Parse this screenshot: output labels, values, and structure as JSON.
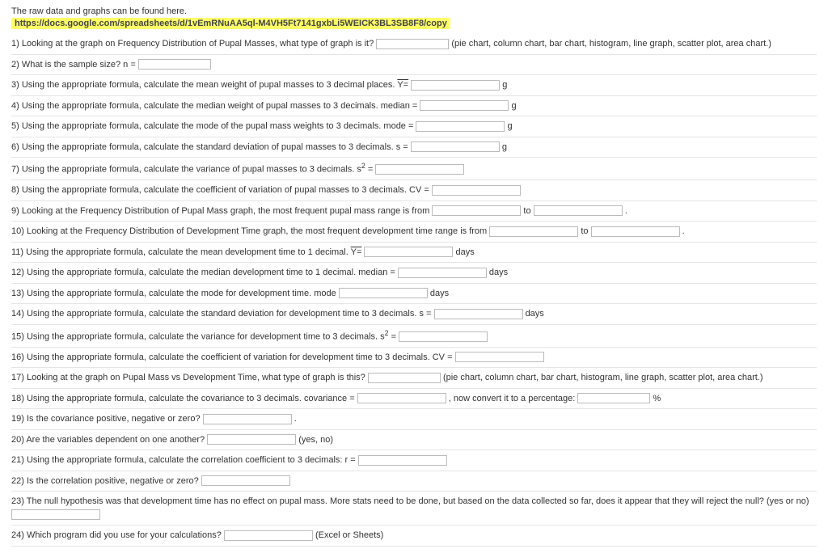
{
  "intro_line": "The raw data and graphs can be found here.",
  "url": "https://docs.google.com/spreadsheets/d/1vEmRNuAA5ql-M4VH5Ft7141gxbLi5WEICK3BL3SB8F8/copy",
  "q1a": "1) Looking at the graph on Frequency Distribution of Pupal Masses, what type of graph is it?",
  "q1b": "(pie chart, column chart, bar chart, histogram, line graph, scatter plot, area chart.)",
  "q2": "2) What is the sample size? n =",
  "q3a": "3) Using the appropriate formula, calculate the mean weight of pupal masses to 3 decimal places. ",
  "q3b": "Y=",
  "q3unit": "g",
  "q4a": "4) Using the appropriate formula, calculate the median weight of pupal masses to 3 decimals. median =",
  "q4unit": "g",
  "q5a": "5) Using the appropriate formula, calculate the mode of the pupal mass weights to 3 decimals. mode =",
  "q5unit": "g",
  "q6a": "6) Using the appropriate formula, calculate the standard deviation of pupal masses to 3 decimals. s =",
  "q6unit": "g",
  "q7a": "7) Using the appropriate formula, calculate the variance of pupal masses to 3 decimals. s",
  "q7sup": "2",
  "q7b": " =",
  "q8": "8) Using the appropriate formula, calculate the coefficient of variation of pupal masses to 3 decimals. CV =",
  "q9a": "9) Looking at the Frequency Distribution of Pupal Mass graph, the most frequent pupal mass range is from",
  "q9to": "to",
  "q9end": ".",
  "q10a": "10) Looking at the Frequency Distribution of Development Time graph, the most frequent development time range is from",
  "q10to": "to",
  "q10end": ".",
  "q11a": "11) Using the appropriate formula, calculate the mean development time to 1 decimal. ",
  "q11b": "Y=",
  "q11unit": "days",
  "q12a": "12) Using the appropriate formula, calculate the median development time to 1 decimal. median =",
  "q12unit": "days",
  "q13a": "13) Using the appropriate formula, calculate the mode for development time. mode",
  "q13unit": "days",
  "q14a": "14) Using the appropriate formula, calculate the standard deviation for development time to 3 decimals. s =",
  "q14unit": "days",
  "q15a": "15) Using the appropriate formula, calculate the variance for development time to 3 decimals. s",
  "q15sup": "2",
  "q15b": " =",
  "q16": "16) Using the appropriate formula, calculate the coefficient of variation for development time to 3 decimals. CV =",
  "q17a": "17) Looking at the graph on Pupal Mass vs Development Time, what type of graph is this?",
  "q17b": "(pie chart, column chart, bar chart, histogram, line graph, scatter plot, area chart.)",
  "q18a": "18) Using the appropriate formula, calculate the covariance to 3 decimals. covariance =",
  "q18b": ", now convert it to a percentage:",
  "q18unit": "%",
  "q19a": "19) Is the covariance positive, negative or zero?",
  "q19end": ".",
  "q20a": "20) Are the variables dependent on one another?",
  "q20b": "(yes, no)",
  "q21": "21) Using the appropriate formula, calculate the correlation coefficient to 3 decimals: r =",
  "q22": "22) Is the correlation positive, negative or zero?",
  "q23a": "23) The null hypothesis was that development time has no effect on pupal mass. More stats need to be done, but based on the data collected so far, does it appear that they will reject the null? (yes or no)",
  "q24a": "24) Which program did you use for your calculations?",
  "q24b": "(Excel or Sheets)"
}
